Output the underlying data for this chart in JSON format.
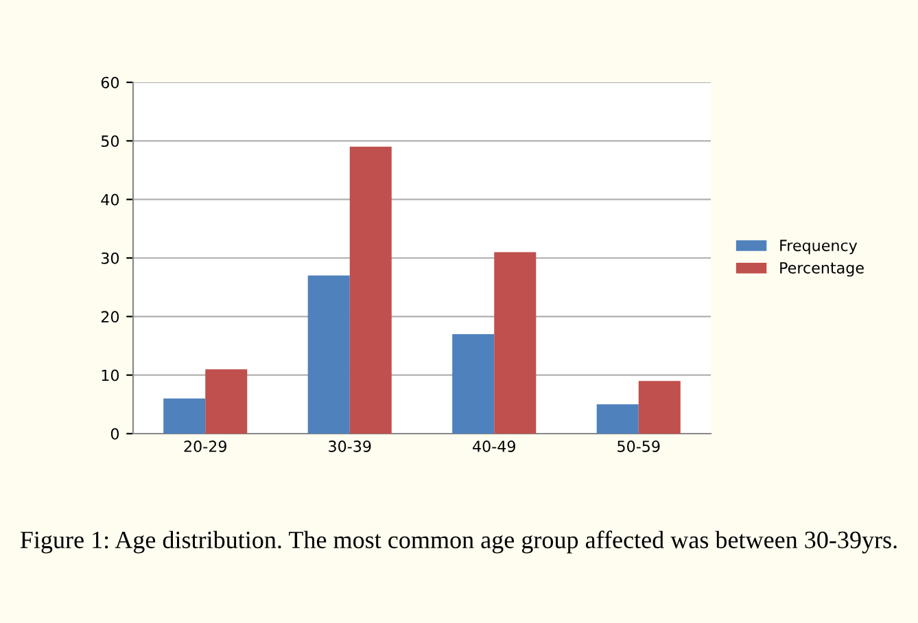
{
  "chart_data": {
    "type": "bar",
    "categories": [
      "20-29",
      "30-39",
      "40-49",
      "50-59"
    ],
    "series": [
      {
        "name": "Frequency",
        "color": "#4f81bd",
        "values": [
          6,
          27,
          17,
          5
        ]
      },
      {
        "name": "Percentage",
        "color": "#c0504d",
        "values": [
          11,
          49,
          31,
          9
        ]
      }
    ],
    "ylim": [
      0,
      60
    ],
    "yticks": [
      0,
      10,
      20,
      30,
      40,
      50,
      60
    ],
    "grid": "y",
    "legend": "right",
    "annotations": [
      "Figure 1: Age distribution. The most common age group affected was between 30-39yrs."
    ]
  }
}
